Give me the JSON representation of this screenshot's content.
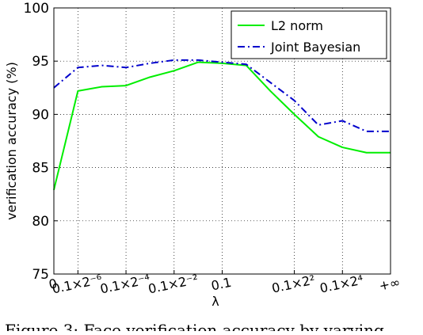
{
  "chart_data": {
    "type": "line",
    "ylabel": "verification accuracy (%)",
    "xlabel": "λ",
    "ylim": [
      75,
      100
    ],
    "y_ticks": [
      75,
      80,
      85,
      90,
      95,
      100
    ],
    "categories": [
      "0",
      "0.1×2⁻⁶",
      "0.1×2⁻⁴",
      "0.1×2⁻²",
      "0.1",
      "0.1×2²",
      "0.1×2⁴",
      "+∞"
    ],
    "x": [
      0,
      1,
      2,
      3,
      4,
      5,
      6,
      7,
      8,
      9,
      10,
      11,
      12,
      13,
      14
    ],
    "series": [
      {
        "name": "L2 norm",
        "color": "#00ee00",
        "linestyle": "solid",
        "values": [
          82.9,
          92.2,
          92.6,
          92.7,
          93.5,
          94.1,
          94.9,
          94.8,
          94.6,
          92.2,
          90.0,
          87.9,
          86.9,
          86.4,
          86.4
        ]
      },
      {
        "name": "Joint Bayesian",
        "color": "#0000cc",
        "linestyle": "dashdot",
        "values": [
          92.5,
          94.4,
          94.6,
          94.4,
          94.8,
          95.1,
          95.1,
          94.9,
          94.7,
          93.0,
          91.3,
          89.0,
          89.4,
          88.4,
          88.4
        ]
      }
    ],
    "x_range": [
      0,
      14
    ],
    "grid": true,
    "legend_position": "top-right"
  },
  "caption": "Figure 3: Face verification accuracy by varying"
}
